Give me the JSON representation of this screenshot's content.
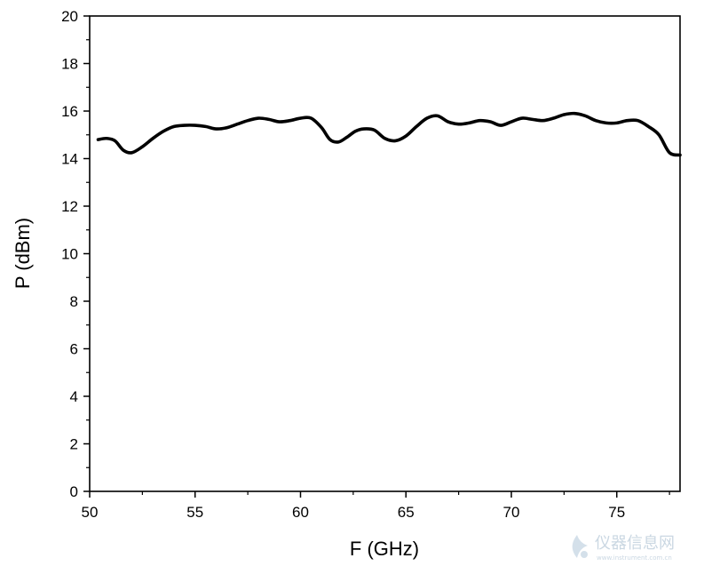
{
  "chart_data": {
    "type": "line",
    "xlabel": "F (GHz)",
    "ylabel": "P (dBm)",
    "xlim": [
      50,
      78
    ],
    "ylim": [
      0,
      20
    ],
    "x_ticks": [
      50,
      55,
      60,
      65,
      70,
      75
    ],
    "y_ticks": [
      0,
      2,
      4,
      6,
      8,
      10,
      12,
      14,
      16,
      18,
      20
    ],
    "grid": false,
    "series": [
      {
        "color": "#000000",
        "x": [
          50.4,
          50.8,
          51.2,
          51.6,
          52.0,
          52.5,
          53.0,
          53.5,
          54.0,
          54.5,
          55.0,
          55.5,
          56.0,
          56.5,
          57.0,
          57.5,
          58.0,
          58.5,
          59.0,
          59.5,
          60.0,
          60.5,
          61.0,
          61.4,
          61.8,
          62.2,
          62.6,
          63.0,
          63.5,
          64.0,
          64.5,
          65.0,
          65.5,
          66.0,
          66.5,
          67.0,
          67.5,
          68.0,
          68.5,
          69.0,
          69.5,
          70.0,
          70.5,
          71.0,
          71.5,
          72.0,
          72.5,
          73.0,
          73.5,
          74.0,
          74.5,
          75.0,
          75.5,
          76.0,
          76.5,
          77.0,
          77.5,
          78.0
        ],
        "y": [
          14.8,
          14.85,
          14.75,
          14.35,
          14.25,
          14.5,
          14.85,
          15.15,
          15.35,
          15.4,
          15.4,
          15.35,
          15.25,
          15.3,
          15.45,
          15.6,
          15.7,
          15.65,
          15.55,
          15.6,
          15.7,
          15.7,
          15.3,
          14.8,
          14.7,
          14.9,
          15.15,
          15.25,
          15.2,
          14.85,
          14.75,
          14.95,
          15.35,
          15.7,
          15.8,
          15.55,
          15.45,
          15.5,
          15.6,
          15.55,
          15.4,
          15.55,
          15.7,
          15.65,
          15.6,
          15.7,
          15.85,
          15.9,
          15.8,
          15.6,
          15.5,
          15.5,
          15.6,
          15.6,
          15.35,
          15.0,
          14.25,
          14.15
        ]
      }
    ]
  },
  "watermark": {
    "text": "仪器信息网",
    "subtext": "www.instrument.com.cn"
  }
}
